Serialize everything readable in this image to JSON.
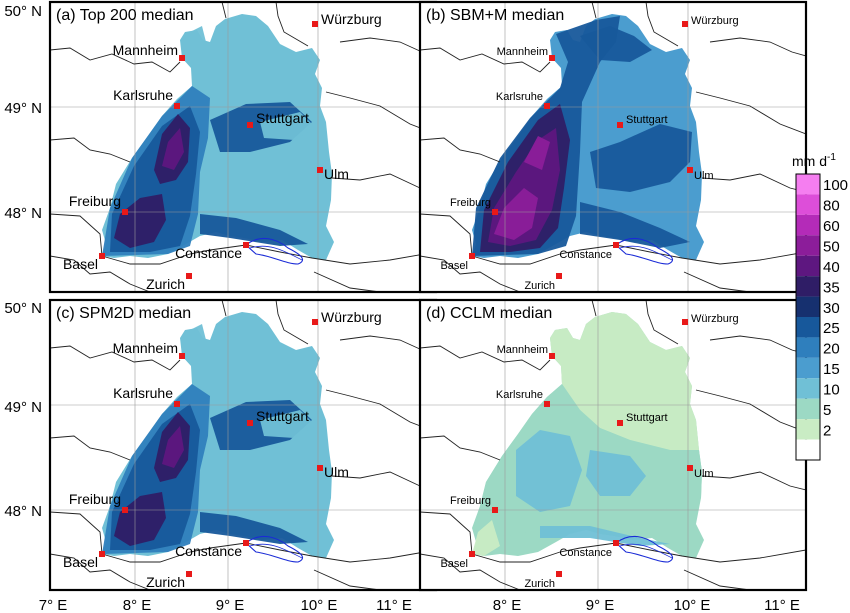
{
  "panels": [
    {
      "title": "(a) Top 200 median",
      "style": "rich",
      "cities": {
        "Mannheim": "Mannheim",
        "Karlsruhe": "Karlsruhe",
        "Stuttgart": "Stuttgart",
        "Ulm": "Ulm",
        "Freiburg": "Freiburg",
        "Basel": "Basel",
        "Constance": "Constance",
        "Zurich": "Zurich",
        "Wurzburg": "Würzburg"
      }
    },
    {
      "title": "(b) SBM+M median",
      "style": "deep",
      "cities": {
        "Mannheim": "Mannheim",
        "Karlsruhe": "Karlsruhe",
        "Stuttgart": "Stuttgart",
        "Ulm": "Ulm",
        "Freiburg": "Freiburg",
        "Basel": "Basel",
        "Constance": "Constance",
        "Zurich": "Zurich",
        "Wurzburg": "Würzburg"
      }
    },
    {
      "title": "(c) SPM2D median",
      "style": "rich",
      "cities": {
        "Mannheim": "Mannheim",
        "Karlsruhe": "Karlsruhe",
        "Stuttgart": "Stuttgart",
        "Ulm": "Ulm",
        "Freiburg": "Freiburg",
        "Basel": "Basel",
        "Constance": "Constance",
        "Zurich": "Zurich",
        "Wurzburg": "Würzburg"
      }
    },
    {
      "title": "(d) CCLM median",
      "style": "light",
      "cities": {
        "Mannheim": "Mannheim",
        "Karlsruhe": "Karlsruhe",
        "Stuttgart": "Stuttgart",
        "Ulm": "Ulm",
        "Freiburg": "Freiburg",
        "Basel": "Basel",
        "Constance": "Constance",
        "Zurich": "Zurich",
        "Wurzburg": "Würzburg"
      }
    }
  ],
  "lat_labels": [
    "50° N",
    "49° N",
    "48° N"
  ],
  "lon_labels": [
    "7° E",
    "8° E",
    "9° E",
    "10° E",
    "11° E"
  ],
  "colorbar": {
    "unit_base": "mm d",
    "unit_sup": "-1",
    "ticks": [
      "100",
      "80",
      "60",
      "50",
      "40",
      "35",
      "30",
      "25",
      "20",
      "15",
      "10",
      "5",
      "2"
    ],
    "colors": [
      "#f57ef0",
      "#dd4ed9",
      "#b42bb8",
      "#8c1d9a",
      "#5e1780",
      "#2f1d66",
      "#16306f",
      "#17589b",
      "#2f7fbd",
      "#4b9dcf",
      "#70c0d6",
      "#9cd9c4",
      "#c9ecc4",
      "#ffffff"
    ]
  },
  "colors": {
    "city_marker": "#e81919"
  }
}
